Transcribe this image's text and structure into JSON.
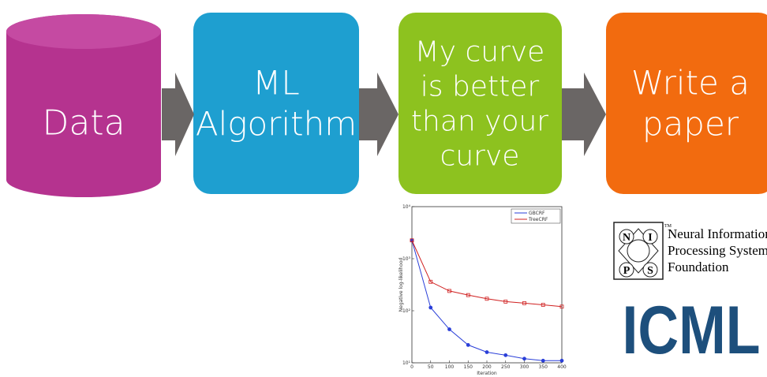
{
  "steps": [
    {
      "lines": [
        "Data"
      ]
    },
    {
      "lines": [
        "ML",
        "Algorithm"
      ]
    },
    {
      "lines": [
        "My curve",
        "is better",
        "than your",
        "curve"
      ]
    },
    {
      "lines": [
        "Write a",
        "paper"
      ]
    }
  ],
  "plot": {
    "type": "line",
    "x_label": "Iteration",
    "y_label": "Negative log-likelihood",
    "x": [
      0,
      50,
      100,
      150,
      200,
      250,
      300,
      350,
      400
    ],
    "series": [
      {
        "name": "GBCRF",
        "color": "#2a3fd8",
        "values": [
          2250,
          115,
          44,
          22,
          16,
          14,
          12,
          11,
          11
        ]
      },
      {
        "name": "TreeCRF",
        "color": "#d02020",
        "values": [
          2250,
          360,
          240,
          200,
          170,
          150,
          140,
          130,
          120
        ]
      }
    ],
    "xlim": [
      0,
      400
    ],
    "xticks": [
      0,
      50,
      100,
      150,
      200,
      250,
      300,
      350,
      400
    ],
    "ylim": [
      10,
      10000
    ],
    "log_y": true,
    "yticks": [
      {
        "value": 10,
        "label": "10¹"
      },
      {
        "value": 100,
        "label": "10²"
      },
      {
        "value": 1000,
        "label": "10³"
      },
      {
        "value": 10000,
        "label": "10⁴"
      }
    ]
  },
  "nips": {
    "letters": [
      "N",
      "I",
      "P",
      "S"
    ],
    "tm": "TM",
    "lines": [
      "Neural Information",
      "Processing Systems",
      "Foundation"
    ]
  },
  "icml": "ICML"
}
